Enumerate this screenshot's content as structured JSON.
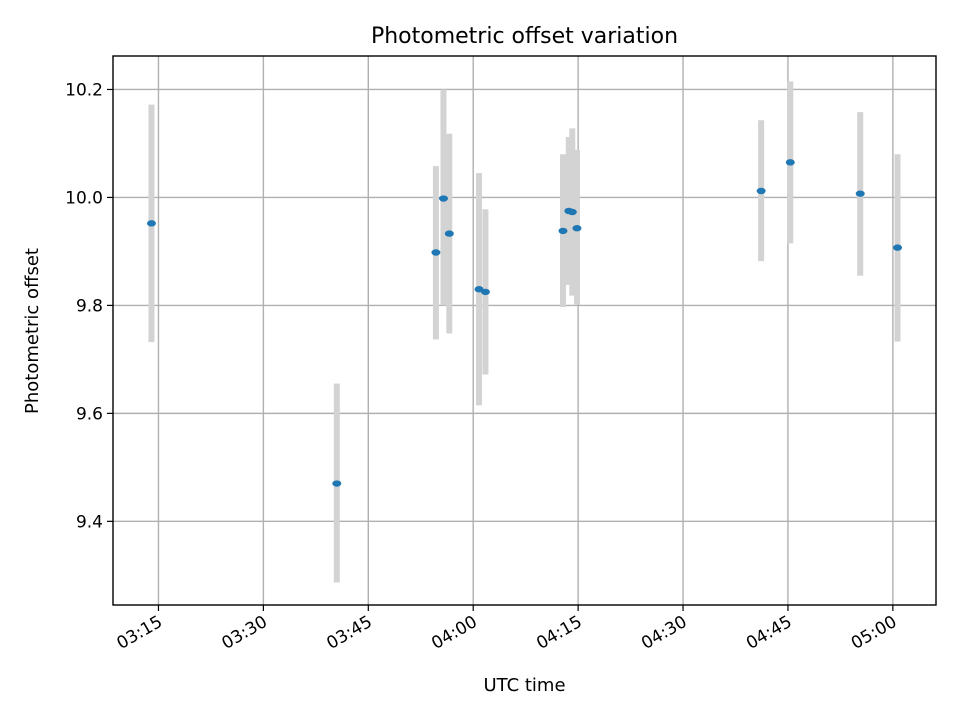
{
  "chart_data": {
    "type": "scatter",
    "title": "Photometric offset variation",
    "xlabel": "UTC time",
    "ylabel": "Photometric offset",
    "x_unit": "UTC HH:MM",
    "xlim": [
      "03:08:30",
      "05:06:10"
    ],
    "ylim": [
      9.245,
      10.262
    ],
    "x_ticks": [
      "03:15",
      "03:30",
      "03:45",
      "04:00",
      "04:15",
      "04:30",
      "04:45",
      "05:00"
    ],
    "y_ticks": [
      9.4,
      9.6,
      9.8,
      10.0,
      10.2
    ],
    "grid": true,
    "legend": "none",
    "marker_color": "#1f77b4",
    "errorbar_color": "#d3d3d3",
    "points": [
      {
        "time": "03:14:00",
        "y": 9.952,
        "ylow": 9.732,
        "yhigh": 10.172
      },
      {
        "time": "03:40:30",
        "y": 9.47,
        "ylow": 9.287,
        "yhigh": 9.655
      },
      {
        "time": "03:54:40",
        "y": 9.898,
        "ylow": 9.737,
        "yhigh": 10.058
      },
      {
        "time": "03:55:45",
        "y": 9.998,
        "ylow": 9.8,
        "yhigh": 10.2
      },
      {
        "time": "03:56:35",
        "y": 9.933,
        "ylow": 9.748,
        "yhigh": 10.118
      },
      {
        "time": "04:00:50",
        "y": 9.83,
        "ylow": 9.615,
        "yhigh": 10.045
      },
      {
        "time": "04:01:45",
        "y": 9.825,
        "ylow": 9.672,
        "yhigh": 9.978
      },
      {
        "time": "04:12:50",
        "y": 9.938,
        "ylow": 9.797,
        "yhigh": 10.08
      },
      {
        "time": "04:13:40",
        "y": 9.975,
        "ylow": 9.838,
        "yhigh": 10.112
      },
      {
        "time": "04:14:10",
        "y": 9.973,
        "ylow": 9.818,
        "yhigh": 10.128
      },
      {
        "time": "04:14:50",
        "y": 9.943,
        "ylow": 9.802,
        "yhigh": 10.088
      },
      {
        "time": "04:41:10",
        "y": 10.012,
        "ylow": 9.882,
        "yhigh": 10.143
      },
      {
        "time": "04:45:20",
        "y": 10.065,
        "ylow": 9.915,
        "yhigh": 10.215
      },
      {
        "time": "04:55:20",
        "y": 10.007,
        "ylow": 9.855,
        "yhigh": 10.158
      },
      {
        "time": "05:00:40",
        "y": 9.907,
        "ylow": 9.733,
        "yhigh": 10.08
      }
    ]
  }
}
